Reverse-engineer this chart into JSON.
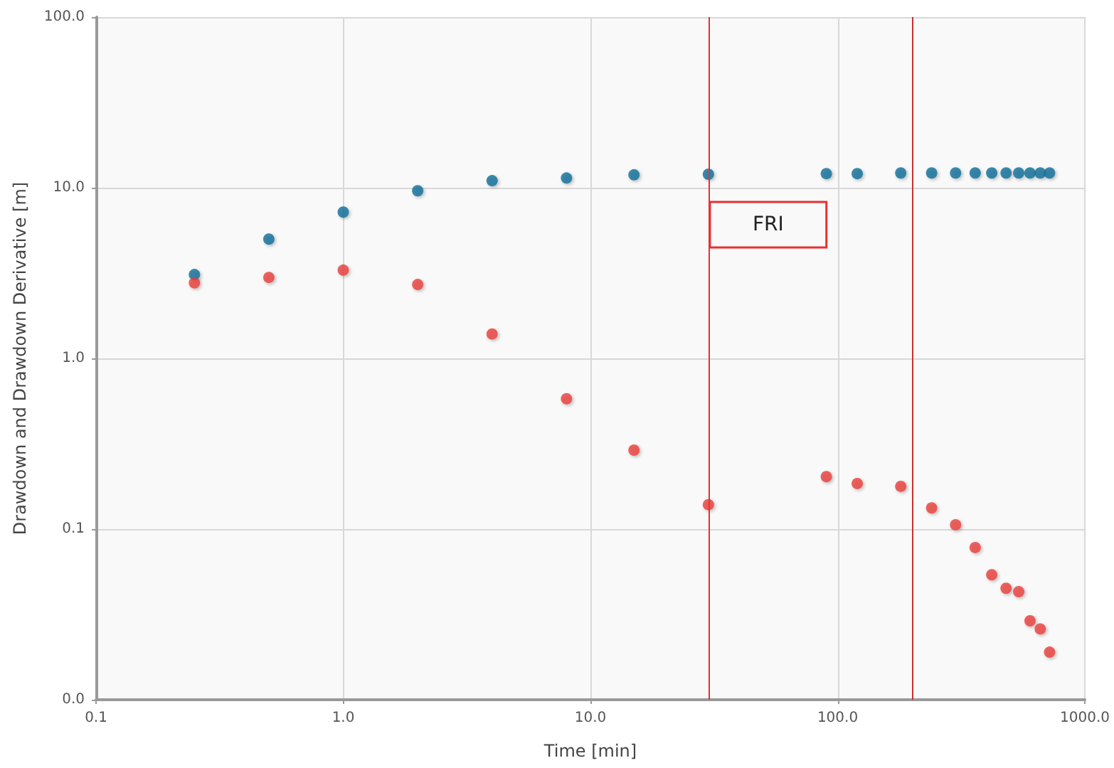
{
  "chart_data": {
    "type": "scatter",
    "xlabel": "Time [min]",
    "ylabel": "Drawdown and Drawdown Derivative [m]",
    "x": [
      0.25,
      0.5,
      1,
      2,
      4,
      8,
      15,
      30,
      90,
      120,
      180,
      240,
      300,
      360,
      420,
      480,
      540,
      600,
      660,
      720
    ],
    "series": [
      {
        "color": "#0a6e98",
        "values": [
          3.1,
          5.0,
          7.2,
          9.6,
          11.0,
          11.4,
          11.9,
          12.0,
          12.1,
          12.1,
          12.2,
          12.2,
          12.2,
          12.2,
          12.2,
          12.2,
          12.2,
          12.2,
          12.2,
          12.2
        ]
      },
      {
        "color": "#e8403c",
        "values": [
          2.77,
          2.98,
          3.29,
          2.71,
          1.39,
          0.58,
          0.29,
          0.139,
          0.203,
          0.185,
          0.178,
          0.133,
          0.106,
          0.078,
          0.054,
          0.045,
          0.043,
          0.029,
          0.026,
          0.019
        ]
      }
    ],
    "log": "xy",
    "xlim": [
      0.1,
      1000
    ],
    "ylim": [
      0.01,
      100
    ],
    "xticks": [
      {
        "value": 0.1,
        "label": "0.1"
      },
      {
        "value": 1,
        "label": "1.0"
      },
      {
        "value": 10,
        "label": "10.0"
      },
      {
        "value": 100,
        "label": "100.0"
      },
      {
        "value": 1000,
        "label": "1000.0"
      }
    ],
    "yticks": [
      {
        "value": 0.01,
        "label": "0.0"
      },
      {
        "value": 0.1,
        "label": "0.1"
      },
      {
        "value": 1,
        "label": "1.0"
      },
      {
        "value": 10,
        "label": "10.0"
      },
      {
        "value": 100,
        "label": "100.0"
      }
    ],
    "grid": true,
    "marker": "circle",
    "ref_lines": [
      {
        "axis": "x",
        "value": 30,
        "label": "FRI",
        "color": "#e83030"
      },
      {
        "axis": "x",
        "value": 200,
        "color": "#c83030"
      }
    ]
  }
}
